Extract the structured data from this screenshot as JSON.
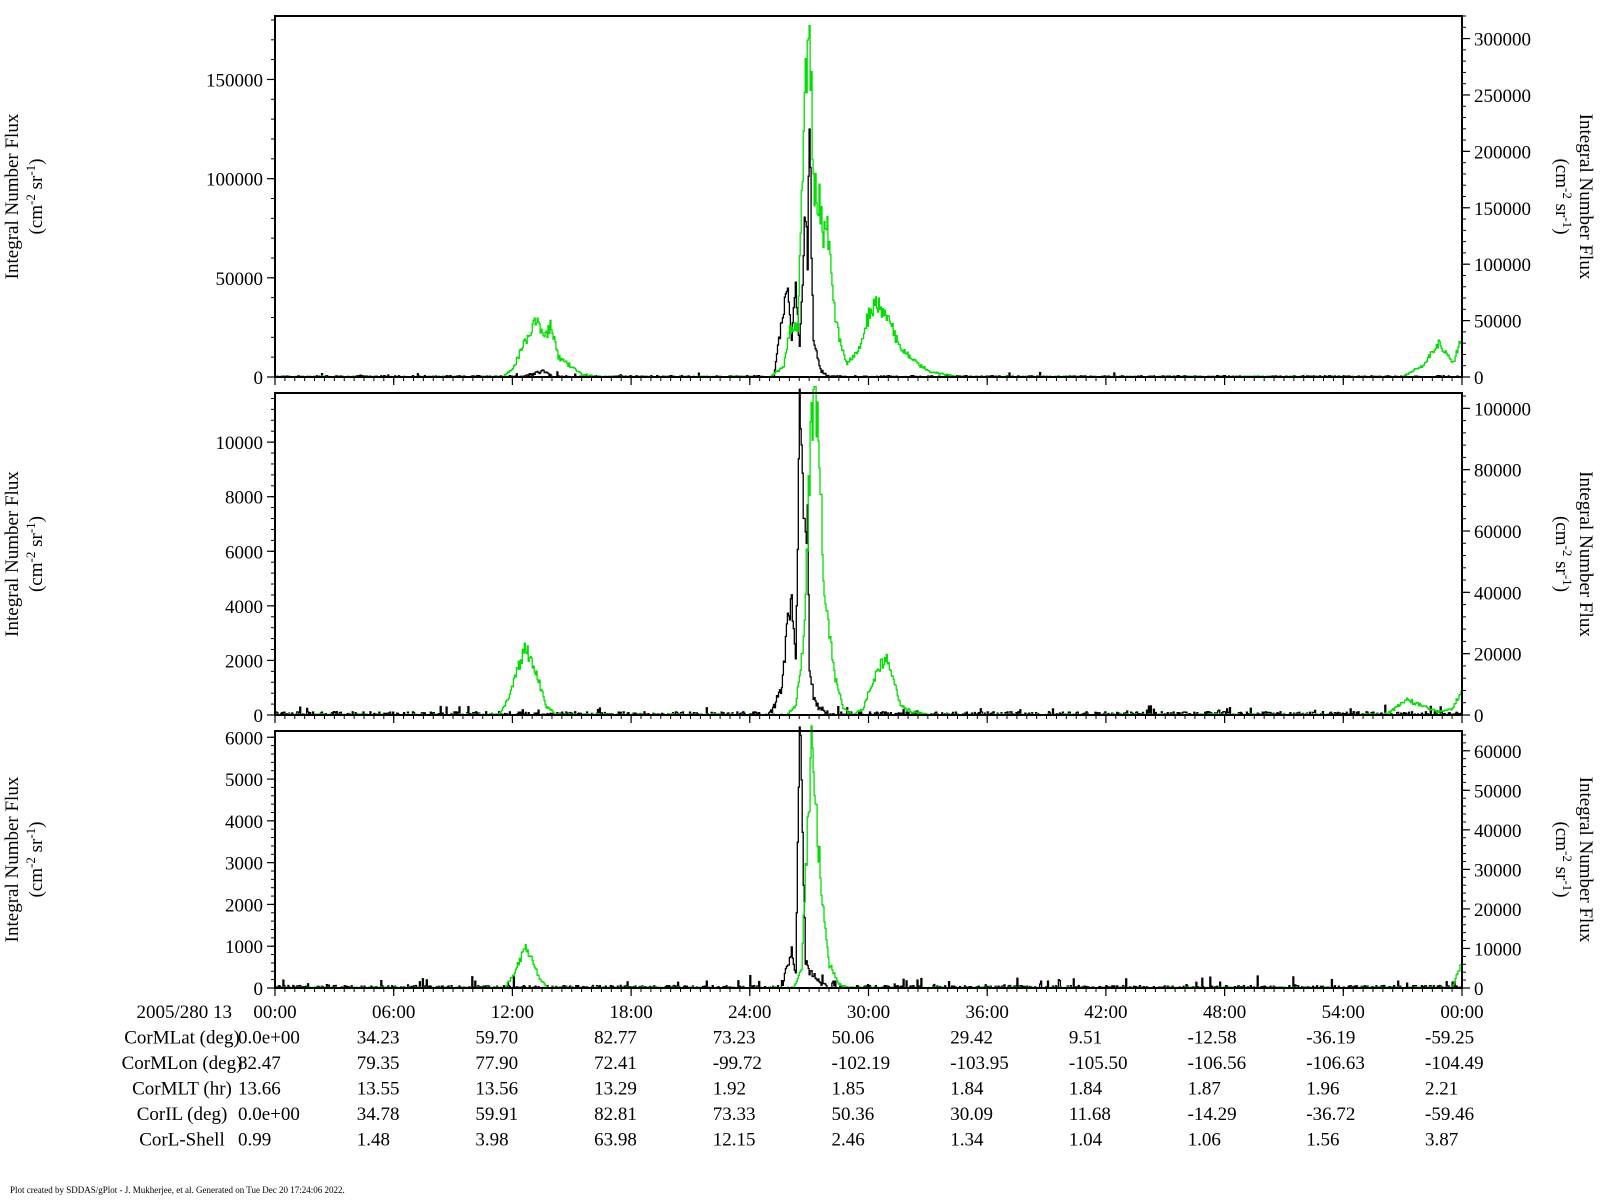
{
  "footer": "Plot created by SDDAS/gPlot - J. Mukherjee, et al.  Generated on Tue Dec 20 17:24:06 2022.",
  "colors": {
    "series_black": "#000000",
    "series_green": "#00e000",
    "axis": "#000000"
  },
  "x_axis": {
    "range_hours": [
      0,
      60
    ],
    "tick_hours": [
      0,
      6,
      12,
      18,
      24,
      30,
      36,
      42,
      48,
      54,
      60
    ],
    "tick_labels": [
      "00:00",
      "06:00",
      "12:00",
      "18:00",
      "24:00",
      "30:00",
      "36:00",
      "42:00",
      "48:00",
      "54:00",
      "00:00"
    ],
    "minor_step_hours": 0.5
  },
  "ephemeris": {
    "header": "2005/280 13",
    "rows": [
      {
        "label": "CorMLat (deg)",
        "values": [
          "0.0e+00",
          "34.23",
          "59.70",
          "82.77",
          "73.23",
          "50.06",
          "29.42",
          "9.51",
          "-12.58",
          "-36.19",
          "-59.25"
        ]
      },
      {
        "label": "CorMLon (deg)",
        "values": [
          "82.47",
          "79.35",
          "77.90",
          "72.41",
          "-99.72",
          "-102.19",
          "-103.95",
          "-105.50",
          "-106.56",
          "-106.63",
          "-104.49"
        ]
      },
      {
        "label": "CorMLT (hr)",
        "values": [
          "13.66",
          "13.55",
          "13.56",
          "13.29",
          "1.92",
          "1.85",
          "1.84",
          "1.84",
          "1.87",
          "1.96",
          "2.21"
        ]
      },
      {
        "label": "CorIL (deg)",
        "values": [
          "0.0e+00",
          "34.78",
          "59.91",
          "82.81",
          "73.33",
          "50.36",
          "30.09",
          "11.68",
          "-14.29",
          "-36.72",
          "-59.46"
        ]
      },
      {
        "label": "CorL-Shell",
        "values": [
          "0.99",
          "1.48",
          "3.98",
          "63.98",
          "12.15",
          "2.46",
          "1.34",
          "1.04",
          "1.06",
          "1.56",
          "3.87"
        ]
      }
    ]
  },
  "chart_data": [
    {
      "type": "line",
      "ylabel_left": [
        "Integral Number Flux",
        "(cm",
        "-2",
        " sr",
        "-1",
        ")"
      ],
      "ylabel_right": [
        "Integral Number Flux",
        "(cm",
        "-2",
        " sr",
        "-1",
        ")"
      ],
      "ylim_left": [
        0,
        182000
      ],
      "ylim_right": [
        0,
        320000
      ],
      "yticks_left": [
        0,
        50000,
        100000,
        150000
      ],
      "yticks_right": [
        0,
        50000,
        100000,
        150000,
        200000,
        250000,
        300000
      ],
      "ytick_labels_left": [
        "0",
        "50000",
        "100000",
        "150000"
      ],
      "ytick_labels_right": [
        "0",
        "50000",
        "100000",
        "150000",
        "200000",
        "250000",
        "300000"
      ],
      "series": [
        {
          "axis": "left",
          "color": "#000000",
          "noise": 700,
          "noise_spike_prob": 0.01,
          "noise_spike_max": 2500,
          "x": [
            0,
            12.5,
            13.5,
            14,
            25.2,
            25.6,
            25.9,
            26.1,
            26.3,
            26.5,
            26.8,
            26.9,
            27.0,
            27.1,
            27.2,
            27.4,
            27.6,
            28,
            60
          ],
          "y": [
            0,
            0,
            3000,
            0,
            0,
            30000,
            48000,
            20000,
            44000,
            15000,
            88000,
            55000,
            142000,
            60000,
            20000,
            10000,
            3000,
            0,
            0
          ]
        },
        {
          "axis": "right",
          "color": "#00e000",
          "noise": 900,
          "noise_spike_prob": 0,
          "noise_spike_max": 0,
          "x": [
            0,
            11.5,
            12.0,
            12.6,
            13.2,
            13.6,
            13.9,
            14.3,
            15.5,
            16.5,
            25.0,
            25.7,
            26.0,
            26.4,
            26.7,
            27.0,
            27.2,
            27.5,
            27.7,
            28.0,
            28.2,
            28.5,
            28.9,
            29.5,
            30.0,
            30.4,
            31.0,
            31.6,
            32.3,
            33.0,
            34.5,
            57.0,
            58.0,
            58.8,
            59.5,
            60.0
          ],
          "y": [
            0,
            0,
            8000,
            30000,
            50000,
            32000,
            46000,
            18000,
            2000,
            0,
            0,
            10000,
            40000,
            45000,
            220000,
            315000,
            170000,
            155000,
            120000,
            130000,
            65000,
            35000,
            12000,
            25000,
            55000,
            68000,
            50000,
            25000,
            15000,
            5000,
            0,
            0,
            10000,
            30000,
            12000,
            35000
          ]
        }
      ]
    },
    {
      "type": "line",
      "ylabel_left": [
        "Integral Number Flux",
        "(cm",
        "-2",
        " sr",
        "-1",
        ")"
      ],
      "ylabel_right": [
        "Integral Number Flux",
        "(cm",
        "-2",
        " sr",
        "-1",
        ")"
      ],
      "ylim_left": [
        0,
        11800
      ],
      "ylim_right": [
        0,
        105000
      ],
      "yticks_left": [
        0,
        2000,
        4000,
        6000,
        8000,
        10000
      ],
      "yticks_right": [
        0,
        20000,
        40000,
        60000,
        80000,
        100000
      ],
      "ytick_labels_left": [
        "0",
        "2000",
        "4000",
        "6000",
        "8000",
        "10000"
      ],
      "ytick_labels_right": [
        "0",
        "20000",
        "40000",
        "60000",
        "80000",
        "100000"
      ],
      "series": [
        {
          "axis": "left",
          "color": "#000000",
          "noise": 120,
          "noise_spike_prob": 0.05,
          "noise_spike_max": 330,
          "x": [
            0,
            25.0,
            25.6,
            25.9,
            26.1,
            26.3,
            26.5,
            26.7,
            26.9,
            27.0,
            27.3,
            27.6,
            28,
            60
          ],
          "y": [
            0,
            0,
            1000,
            3500,
            4300,
            2000,
            11300,
            8000,
            6800,
            1500,
            400,
            200,
            0,
            0
          ]
        },
        {
          "axis": "right",
          "color": "#00e000",
          "noise": 400,
          "noise_spike_prob": 0,
          "noise_spike_max": 0,
          "x": [
            0,
            11.3,
            11.8,
            12.3,
            12.6,
            12.9,
            13.3,
            13.7,
            14.2,
            25.8,
            26.3,
            26.7,
            26.9,
            27.1,
            27.3,
            27.5,
            27.7,
            28.0,
            28.3,
            28.7,
            29.2,
            29.7,
            30.1,
            30.5,
            30.9,
            31.2,
            31.6,
            32.2,
            33.0,
            56.0,
            56.8,
            57.2,
            57.8,
            58.3,
            58.8,
            59.5,
            60.0
          ],
          "y": [
            0,
            0,
            6000,
            16000,
            21000,
            19000,
            11000,
            3000,
            0,
            0,
            3000,
            25000,
            60000,
            100000,
            105000,
            85000,
            45000,
            28000,
            12000,
            2000,
            0,
            2000,
            9000,
            16000,
            18000,
            12000,
            3000,
            1000,
            0,
            0,
            3000,
            5000,
            3500,
            2000,
            1000,
            2000,
            9000
          ]
        }
      ]
    },
    {
      "type": "line",
      "ylabel_left": [
        "Integral Number Flux",
        "(cm",
        "-2",
        " sr",
        "-1",
        ")"
      ],
      "ylabel_right": [
        "Integral Number Flux",
        "(cm",
        "-2",
        " sr",
        "-1",
        ")"
      ],
      "ylim_left": [
        0,
        6150
      ],
      "ylim_right": [
        0,
        65000
      ],
      "yticks_left": [
        0,
        1000,
        2000,
        3000,
        4000,
        5000,
        6000
      ],
      "yticks_right": [
        0,
        10000,
        20000,
        30000,
        40000,
        50000,
        60000
      ],
      "ytick_labels_left": [
        "0",
        "1000",
        "2000",
        "3000",
        "4000",
        "5000",
        "6000"
      ],
      "ytick_labels_right": [
        "0",
        "10000",
        "20000",
        "30000",
        "40000",
        "50000",
        "60000"
      ],
      "series": [
        {
          "axis": "left",
          "color": "#000000",
          "noise": 60,
          "noise_spike_prob": 0.06,
          "noise_spike_max": 260,
          "x": [
            0,
            25.6,
            25.9,
            26.1,
            26.3,
            26.5,
            26.6,
            26.8,
            27.0,
            27.2,
            27.6,
            28,
            60
          ],
          "y": [
            0,
            0,
            600,
            900,
            300,
            6100,
            4800,
            600,
            400,
            300,
            100,
            0,
            0
          ]
        },
        {
          "axis": "right",
          "color": "#00e000",
          "noise": 250,
          "noise_spike_prob": 0,
          "noise_spike_max": 0,
          "x": [
            0,
            11.6,
            12.1,
            12.6,
            13.0,
            13.4,
            13.8,
            26.2,
            26.6,
            26.9,
            27.1,
            27.3,
            27.5,
            27.7,
            28.0,
            28.5,
            29.0,
            59.5,
            60.0
          ],
          "y": [
            0,
            0,
            4000,
            10000,
            7000,
            2000,
            0,
            0,
            5000,
            40000,
            60000,
            48000,
            32000,
            20000,
            6000,
            1000,
            0,
            0,
            7000
          ]
        }
      ]
    }
  ]
}
